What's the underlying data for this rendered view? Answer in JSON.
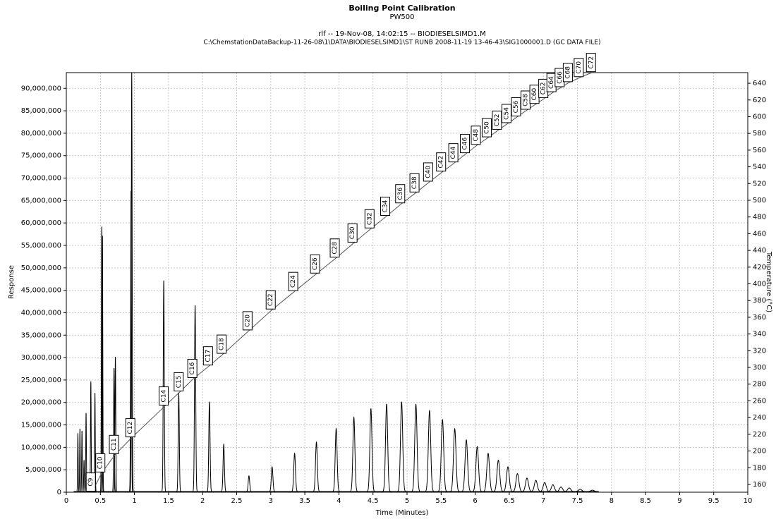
{
  "chart_data": {
    "type": "chromatogram",
    "title": "Boiling Point Calibration",
    "subtitle": "PW500",
    "run_info": "rlf -- 19-Nov-08, 14:02:15 -- BIODIESELSIMD1.M",
    "file_path": "C:\\ChemstationDataBackup-11-26-08\\1\\DATA\\BIODIESELSIMD1\\ST RUNB 2008-11-19 13-46-43\\SIG1000001.D (GC DATA FILE)",
    "xlabel": "Time (Minutes)",
    "ylabel": "Response",
    "y2label": "Temperature (°C)",
    "xlim": [
      0,
      10
    ],
    "xticks": [
      0,
      0.5,
      1,
      1.5,
      2,
      2.5,
      3,
      3.5,
      4,
      4.5,
      5,
      5.5,
      6,
      6.5,
      7,
      7.5,
      8,
      8.5,
      9,
      9.5,
      10
    ],
    "ylim": [
      0,
      93500000
    ],
    "yticks": [
      0,
      {
        "value": 5000000,
        "label": "5,000,000"
      },
      {
        "value": 10000000,
        "label": "10,000,000"
      },
      {
        "value": 15000000,
        "label": "15,000,000"
      },
      {
        "value": 20000000,
        "label": "20,000,000"
      },
      {
        "value": 25000000,
        "label": "25,000,000"
      },
      {
        "value": 30000000,
        "label": "30,000,000"
      },
      {
        "value": 35000000,
        "label": "35,000,000"
      },
      {
        "value": 40000000,
        "label": "40,000,000"
      },
      {
        "value": 45000000,
        "label": "45,000,000"
      },
      {
        "value": 50000000,
        "label": "50,000,000"
      },
      {
        "value": 55000000,
        "label": "55,000,000"
      },
      {
        "value": 60000000,
        "label": "60,000,000"
      },
      {
        "value": 65000000,
        "label": "65,000,000"
      },
      {
        "value": 70000000,
        "label": "70,000,000"
      },
      {
        "value": 75000000,
        "label": "75,000,000"
      },
      {
        "value": 80000000,
        "label": "80,000,000"
      },
      {
        "value": 85000000,
        "label": "85,000,000"
      },
      {
        "value": 90000000,
        "label": "90,000,000"
      }
    ],
    "y2lim": [
      150.7,
      652.7
    ],
    "y2ticks": [
      160,
      180,
      200,
      220,
      240,
      260,
      280,
      300,
      320,
      340,
      360,
      380,
      400,
      420,
      440,
      460,
      480,
      500,
      520,
      540,
      560,
      580,
      600,
      620,
      640
    ],
    "grid": true,
    "signal": {
      "color": "#000000",
      "x": [
        0.17,
        0.2,
        0.23,
        0.26,
        0.29,
        0.36,
        0.42,
        0.52,
        0.53,
        0.7,
        0.72,
        0.95,
        0.96,
        1.43,
        1.65,
        1.89,
        2.1,
        2.31,
        2.68,
        3.02,
        3.35,
        3.67,
        3.96,
        4.22,
        4.47,
        4.7,
        4.92,
        5.13,
        5.33,
        5.52,
        5.7,
        5.87,
        6.03,
        6.19,
        6.34,
        6.48,
        6.62,
        6.76,
        6.89,
        7.02,
        7.14,
        7.26,
        7.38,
        7.54,
        7.72
      ],
      "values": [
        13000000,
        14000000,
        13500000,
        7000000,
        17500000,
        24500000,
        22000000,
        59000000,
        57000000,
        27500000,
        30000000,
        67000000,
        93500000,
        47000000,
        22000000,
        41500000,
        20000000,
        10500000,
        3500000,
        5500000,
        8500000,
        11000000,
        14000000,
        16500000,
        18500000,
        19500000,
        20000000,
        19500000,
        18000000,
        16000000,
        14000000,
        11500000,
        10000000,
        8500000,
        7000000,
        5500000,
        4000000,
        3000000,
        2500000,
        2000000,
        1500000,
        1000000,
        800000,
        500000,
        300000
      ]
    },
    "calibration": {
      "axis": "y2",
      "color": "#555555",
      "labels": [
        "C9",
        "C10",
        "C11",
        "C12",
        "C14",
        "C15",
        "C16",
        "C17",
        "C18",
        "C20",
        "C22",
        "C24",
        "C26",
        "C28",
        "C30",
        "C32",
        "C34",
        "C36",
        "C38",
        "C40",
        "C42",
        "C44",
        "C46",
        "C48",
        "C50",
        "C52",
        "C54",
        "C56",
        "C58",
        "C60",
        "C62",
        "C64",
        "C66",
        "C68",
        "C70",
        "C72"
      ],
      "x": [
        0.38,
        0.52,
        0.72,
        0.96,
        1.45,
        1.67,
        1.87,
        2.1,
        2.3,
        2.68,
        3.02,
        3.35,
        3.67,
        3.96,
        4.22,
        4.47,
        4.7,
        4.92,
        5.13,
        5.33,
        5.52,
        5.7,
        5.87,
        6.03,
        6.19,
        6.34,
        6.48,
        6.62,
        6.76,
        6.89,
        7.02,
        7.14,
        7.26,
        7.38,
        7.54,
        7.72
      ],
      "values": [
        151,
        174,
        196,
        216,
        254,
        271,
        287,
        302,
        316,
        344,
        369,
        391,
        412,
        431,
        449,
        466,
        481,
        496,
        509,
        522,
        534,
        545,
        556,
        566,
        575,
        584,
        592,
        600,
        608,
        615,
        622,
        629,
        635,
        641,
        647,
        653
      ]
    }
  }
}
